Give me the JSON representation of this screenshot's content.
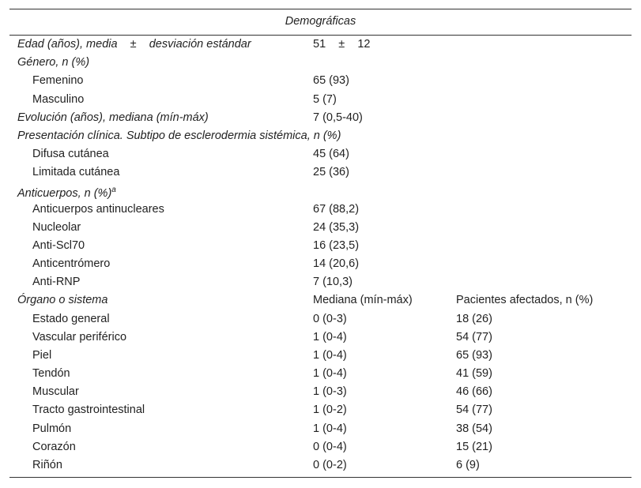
{
  "header": {
    "title": "Demográficas"
  },
  "sections": [
    {
      "title": "Edad (años), media    ±    desviación estándar",
      "cells": [
        "51    ±    12"
      ],
      "items": []
    },
    {
      "title": "Género, n (%)",
      "cells": [],
      "items": [
        [
          "Femenino",
          "65 (93)"
        ],
        [
          "Masculino",
          "5 (7)"
        ]
      ]
    },
    {
      "title": "Evolución (años), mediana (mín-máx)",
      "cells": [
        "7 (0,5-40)"
      ],
      "items": []
    },
    {
      "title": "Presentación clínica. Subtipo de esclerodermia sistémica, n (%)",
      "cells": [],
      "items": [
        [
          "Difusa cutánea",
          "45 (64)"
        ],
        [
          "Limitada cutánea",
          "25 (36)"
        ]
      ]
    },
    {
      "title": "Anticuerpos, n (%)",
      "note": "a",
      "cells": [],
      "items": [
        [
          "Anticuerpos antinucleares",
          "67 (88,2)"
        ],
        [
          "Nucleolar",
          "24 (35,3)"
        ],
        [
          "Anti-Scl70",
          "16 (23,5)"
        ],
        [
          "Anticentrómero",
          "14 (20,6)"
        ],
        [
          "Anti-RNP",
          "7 (10,3)"
        ]
      ]
    },
    {
      "title": "Órgano o sistema",
      "cells": [
        "Mediana (mín-máx)",
        "Pacientes afectados, n (%)"
      ],
      "items": [
        [
          "Estado general",
          "0 (0-3)",
          "18 (26)"
        ],
        [
          "Vascular periférico",
          "1 (0-4)",
          "54 (77)"
        ],
        [
          "Piel",
          "1 (0-4)",
          "65 (93)"
        ],
        [
          "Tendón",
          "1 (0-4)",
          "41 (59)"
        ],
        [
          "Muscular",
          "1 (0-3)",
          "46 (66)"
        ],
        [
          "Tracto gastrointestinal",
          "1 (0-2)",
          "54 (77)"
        ],
        [
          "Pulmón",
          "1 (0-4)",
          "38 (54)"
        ],
        [
          "Corazón",
          "0 (0-4)",
          "15 (21)"
        ],
        [
          "Riñón",
          "0 (0-2)",
          "6 (9)"
        ]
      ]
    }
  ]
}
